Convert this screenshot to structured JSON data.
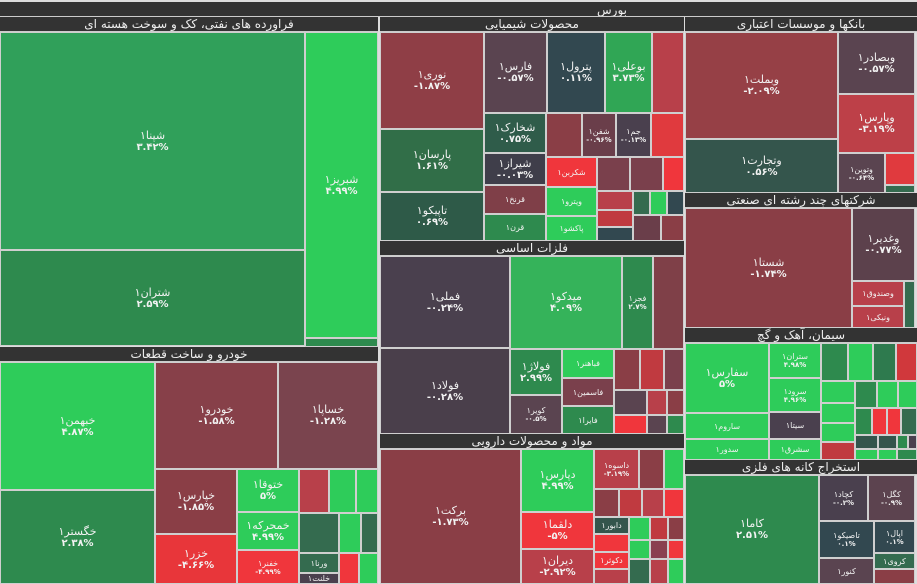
{
  "title": "بورس",
  "colors": {
    "up_strong": "#2ecc5a",
    "up": "#30a05a",
    "up_dark": "#2e8a4e",
    "flat_green": "#34554c",
    "flat_red": "#4a404e",
    "down": "#8a3e46",
    "down_strong": "#f0363c"
  },
  "sectors": {
    "oil": "فراورده های نفتی، کک و سوخت هسته ای",
    "auto": "خودرو و ساخت قطعات",
    "chem": "محصولات شیمیایی",
    "metal": "فلزات اساسی",
    "pharma": "مواد و محصولات دارویی",
    "bank": "بانکها و موسسات اعتباری",
    "multi": "شرکتهای چند رشته ای صنعتی",
    "cement": "سیمان، آهک و گچ",
    "mining": "استخراج کانه های فلزی"
  },
  "tiles": {
    "shpna": {
      "name": "شپنا۱",
      "pct": "۳.۴۲%"
    },
    "shtran": {
      "name": "شتران۱",
      "pct": "۲.۵۹%"
    },
    "shbriz": {
      "name": "شبریز۱",
      "pct": "۴.۹۹%"
    },
    "khbahman": {
      "name": "خبهمن۱",
      "pct": "۴.۸۷%"
    },
    "khgostar": {
      "name": "خگستر۱",
      "pct": "۲.۳۸%"
    },
    "khodro": {
      "name": "خودرو۱",
      "pct": "-۱.۵۸%"
    },
    "khsapa": {
      "name": "خساپا۱",
      "pct": "-۱.۲۸%"
    },
    "khpars": {
      "name": "خپارس۱",
      "pct": "-۱.۸۵%"
    },
    "khazar": {
      "name": "خزر۱",
      "pct": "-۴.۶۶%"
    },
    "khtoga": {
      "name": "ختوقا۱",
      "pct": "۵%"
    },
    "khmoharreke": {
      "name": "خمحرکه۱",
      "pct": "۴.۹۹%"
    },
    "khfanar": {
      "name": "خفنر۱",
      "pct": "-۴.۹۹%"
    },
    "verna": {
      "name": "ورنا۱"
    },
    "kholent": {
      "name": "خلنت۱"
    },
    "noori": {
      "name": "نوری۱",
      "pct": "-۱.۸۷%"
    },
    "parsan": {
      "name": "پارسان۱",
      "pct": "۱.۶۱%"
    },
    "tapiko": {
      "name": "تاپیکو۱",
      "pct": "۰.۶۹%"
    },
    "fars": {
      "name": "فارس۱",
      "pct": "-۰.۵۷%"
    },
    "petrol": {
      "name": "پترول۱",
      "pct": "۰.۱۱%"
    },
    "booali": {
      "name": "بوعلی۱",
      "pct": "۳.۷۳%"
    },
    "shkhark": {
      "name": "شخارک۱",
      "pct": "۰.۷۵%"
    },
    "shiraz": {
      "name": "شیراز۱",
      "pct": "-۰.۰۳%"
    },
    "qarankh": {
      "name": "قرنخ۱"
    },
    "qaran": {
      "name": "قرن۱"
    },
    "shfan": {
      "name": "شفن۱",
      "pct": "-۰.۹۶%"
    },
    "jam": {
      "name": "جم۱",
      "pct": "-۰.۱۳%"
    },
    "shkarbon": {
      "name": "شکربن۱"
    },
    "vitro": {
      "name": "ویترو۱"
    },
    "pakshoo": {
      "name": "پاکشو۱"
    },
    "fameli": {
      "name": "فملی۱",
      "pct": "-۰.۲۴%"
    },
    "foolad": {
      "name": "فولاد۱",
      "pct": "-۰.۲۸%"
    },
    "midko": {
      "name": "میدکو۱",
      "pct": "۴.۰۹%"
    },
    "fajr": {
      "name": "فجر۱",
      "pct": "۲.۷%"
    },
    "foolazh": {
      "name": "فولاژ۱",
      "pct": "۲.۹۹%"
    },
    "kavir": {
      "name": "کویر۱",
      "pct": "-۰.۵%"
    },
    "fbahonar": {
      "name": "فباهنر۱"
    },
    "fasmin": {
      "name": "فاسمین۱"
    },
    "faira": {
      "name": "فایرا۱"
    },
    "barkat": {
      "name": "برکت۱",
      "pct": "-۱.۷۳%"
    },
    "dpars": {
      "name": "دپارس۱",
      "pct": "۴.۹۹%"
    },
    "dalqama": {
      "name": "دلقما۱",
      "pct": "-۵%"
    },
    "diran": {
      "name": "دیران۱",
      "pct": "-۲.۹۲%"
    },
    "dasve": {
      "name": "داسوه۱",
      "pct": "-۳.۱۹%"
    },
    "dabour": {
      "name": "دابور۱"
    },
    "dkosar": {
      "name": "دکوثر۱"
    },
    "vbmellat": {
      "name": "وبملت۱",
      "pct": "-۲.۰۹%"
    },
    "vtejarat": {
      "name": "وتجارت۱",
      "pct": "۰.۵۶%"
    },
    "vbsader": {
      "name": "وبصادر۱",
      "pct": "-۰.۵۷%"
    },
    "vpars": {
      "name": "وپارس۱",
      "pct": "-۳.۱۹%"
    },
    "vtowin": {
      "name": "وتوین۱",
      "pct": "-۰.۶۴%"
    },
    "shasta": {
      "name": "شستا۱",
      "pct": "-۱.۷۴%"
    },
    "vghadir": {
      "name": "وغدیر۱",
      "pct": "-۰.۷۷%"
    },
    "vsandoq": {
      "name": "وصندوق۱"
    },
    "vniki": {
      "name": "ونیکی۱"
    },
    "sfars": {
      "name": "سفارس۱",
      "pct": "۵%"
    },
    "stran": {
      "name": "ستران۱",
      "pct": "۴.۹۸%"
    },
    "sroud": {
      "name": "سرود۱",
      "pct": "۴.۹۶%"
    },
    "sita": {
      "name": "سیتا۱"
    },
    "saroum": {
      "name": "ساروم۱"
    },
    "sdor": {
      "name": "سدور۱"
    },
    "ssharq": {
      "name": "سشرق۱"
    },
    "kama": {
      "name": "کاما۱",
      "pct": "۲.۵۱%"
    },
    "kchad": {
      "name": "کچاد۱",
      "pct": "-۰.۲%"
    },
    "kgol": {
      "name": "کگل۱",
      "pct": "-۰.۹%"
    },
    "tasiko": {
      "name": "تاصیکو۱",
      "pct": "۰.۱%"
    },
    "apal": {
      "name": "اپال۱",
      "pct": "۰.۱%"
    },
    "kroy": {
      "name": "کروی۱"
    },
    "knor": {
      "name": "کنور۱"
    }
  }
}
